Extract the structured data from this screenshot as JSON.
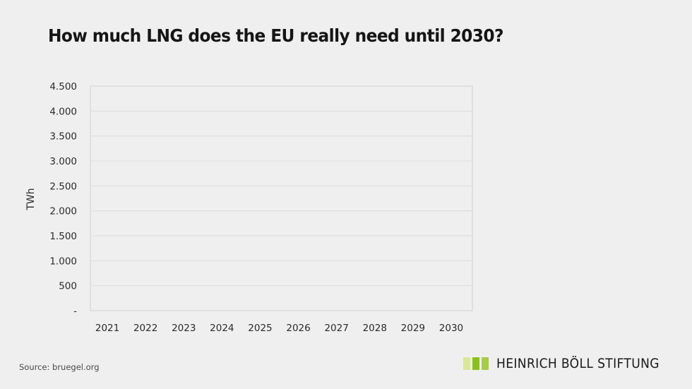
{
  "chart_data": {
    "type": "bar",
    "title": "How much LNG does the EU really need until 2030?",
    "xlabel": "",
    "ylabel": "TWh",
    "categories": [
      "2021",
      "2022",
      "2023",
      "2024",
      "2025",
      "2026",
      "2027",
      "2028",
      "2029",
      "2030"
    ],
    "series": [],
    "ylim": [
      0,
      4500
    ],
    "yticks": [
      0,
      500,
      1000,
      1500,
      2000,
      2500,
      3000,
      3500,
      4000,
      4500
    ],
    "ytick_labels": [
      "-",
      "500",
      "1.000",
      "1.500",
      "2.000",
      "2.500",
      "3.000",
      "3.500",
      "4.000",
      "4.500"
    ],
    "grid": true,
    "legend": "none"
  },
  "footer": {
    "source": "Source: bruegel.org",
    "logo_text": "HEINRICH BÖLL STIFTUNG",
    "logo_colors": [
      "#d8e89a",
      "#8cc01e",
      "#a6cc4a"
    ]
  },
  "colors": {
    "background": "#efefef",
    "gridline": "#dcdcdc",
    "frame": "#d6d6d6"
  }
}
